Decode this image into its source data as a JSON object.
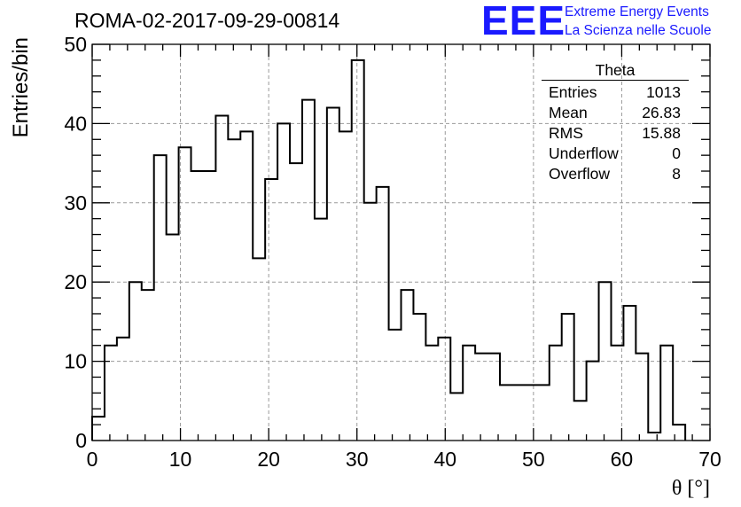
{
  "header": {
    "run_title": "ROMA-02-2017-09-29-00814",
    "logo_text": "EEE",
    "logo_line1": "Extreme Energy Events",
    "logo_line2": "La Scienza nelle Scuole",
    "logo_color": "#1a1aff"
  },
  "stats": {
    "title": "Theta",
    "rows": [
      {
        "label": "Entries",
        "value": "1013"
      },
      {
        "label": "Mean",
        "value": "26.83"
      },
      {
        "label": "RMS",
        "value": "15.88"
      },
      {
        "label": "Underflow",
        "value": "0"
      },
      {
        "label": "Overflow",
        "value": "8"
      }
    ]
  },
  "chart_data": {
    "type": "bar",
    "style": "step-histogram",
    "title": "ROMA-02-2017-09-29-00814",
    "xlabel": "θ [°]",
    "ylabel": "Entries/bin",
    "xlim": [
      0,
      70
    ],
    "ylim": [
      0,
      50
    ],
    "grid": true,
    "x_ticks": [
      0,
      10,
      20,
      30,
      40,
      50,
      60,
      70
    ],
    "y_ticks": [
      0,
      10,
      20,
      30,
      40,
      50
    ],
    "x_tick_labels": [
      "0",
      "10",
      "20",
      "30",
      "40",
      "50",
      "60",
      "70"
    ],
    "y_tick_labels": [
      "0",
      "10",
      "20",
      "30",
      "40",
      "50"
    ],
    "bin_width": 1.4,
    "bin_start": 0,
    "values": [
      3,
      12,
      13,
      20,
      19,
      36,
      26,
      37,
      34,
      34,
      41,
      38,
      39,
      23,
      33,
      40,
      35,
      43,
      28,
      42,
      39,
      48,
      30,
      32,
      14,
      19,
      16,
      12,
      13,
      6,
      12,
      11,
      11,
      7,
      7,
      7,
      7,
      12,
      16,
      5,
      10,
      20,
      12,
      17,
      11,
      1,
      12,
      2
    ]
  }
}
